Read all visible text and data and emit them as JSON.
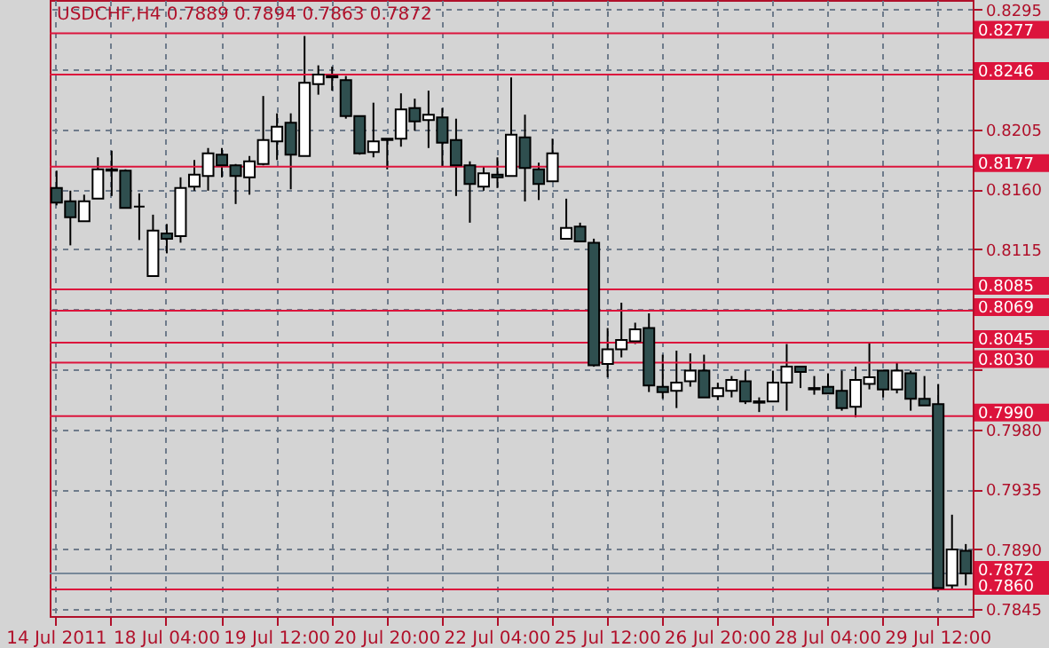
{
  "chart_data": {
    "type": "candlestick",
    "title": "USDCHF,H4 0.7889 0.7894 0.7863 0.7872",
    "categories": [
      "14 Jul 2011",
      null,
      null,
      null,
      null,
      null,
      null,
      null,
      "18 Jul 04:00",
      null,
      null,
      null,
      null,
      null,
      null,
      null,
      "19 Jul 12:00",
      null,
      null,
      null,
      null,
      null,
      null,
      null,
      "20 Jul 20:00",
      null,
      null,
      null,
      null,
      null,
      null,
      null,
      "22 Jul 04:00",
      null,
      null,
      null,
      null,
      null,
      null,
      null,
      "25 Jul 12:00",
      null,
      null,
      null,
      null,
      null,
      null,
      null,
      "26 Jul 20:00",
      null,
      null,
      null,
      null,
      null,
      null,
      null,
      "28 Jul 04:00",
      null,
      null,
      null,
      null,
      null,
      null,
      null,
      "29 Jul 12:00",
      null,
      null
    ],
    "ohlc": [
      [
        0.8161,
        0.8174,
        0.8148,
        0.815
      ],
      [
        0.8151,
        0.8159,
        0.8118,
        0.8139
      ],
      [
        0.8136,
        0.8156,
        0.8136,
        0.8151
      ],
      [
        0.8153,
        0.8184,
        0.8153,
        0.8175
      ],
      [
        0.8175,
        0.8189,
        0.8155,
        0.8174
      ],
      [
        0.8174,
        0.8175,
        0.8146,
        0.8146
      ],
      [
        0.8147,
        0.8157,
        0.8122,
        0.8147
      ],
      [
        0.8095,
        0.8141,
        0.8095,
        0.8129
      ],
      [
        0.8127,
        0.8134,
        0.8112,
        0.8123
      ],
      [
        0.8125,
        0.8169,
        0.812,
        0.8161
      ],
      [
        0.8162,
        0.8182,
        0.8159,
        0.8171
      ],
      [
        0.817,
        0.8191,
        0.8159,
        0.8187
      ],
      [
        0.8186,
        0.8191,
        0.8169,
        0.8178
      ],
      [
        0.8178,
        0.8179,
        0.8149,
        0.817
      ],
      [
        0.8169,
        0.8185,
        0.8156,
        0.8181
      ],
      [
        0.8179,
        0.823,
        0.8178,
        0.8197
      ],
      [
        0.8196,
        0.8217,
        0.8182,
        0.8207
      ],
      [
        0.821,
        0.8217,
        0.816,
        0.8186
      ],
      [
        0.8185,
        0.8275,
        0.8185,
        0.824
      ],
      [
        0.8239,
        0.8253,
        0.8231,
        0.8246
      ],
      [
        0.8245,
        0.8252,
        0.8234,
        0.8244
      ],
      [
        0.8242,
        0.8245,
        0.8213,
        0.8215
      ],
      [
        0.8215,
        0.8215,
        0.8186,
        0.8187
      ],
      [
        0.8188,
        0.8225,
        0.8184,
        0.8196
      ],
      [
        0.8198,
        0.8198,
        0.8175,
        0.8197
      ],
      [
        0.8198,
        0.8232,
        0.8192,
        0.822
      ],
      [
        0.8221,
        0.8228,
        0.8204,
        0.8211
      ],
      [
        0.8212,
        0.8234,
        0.8191,
        0.8216
      ],
      [
        0.8214,
        0.8221,
        0.8177,
        0.8195
      ],
      [
        0.8197,
        0.8213,
        0.8155,
        0.8178
      ],
      [
        0.8178,
        0.8181,
        0.8135,
        0.8164
      ],
      [
        0.8162,
        0.8177,
        0.8159,
        0.8172
      ],
      [
        0.8171,
        0.8184,
        0.8161,
        0.8169
      ],
      [
        0.817,
        0.8244,
        0.817,
        0.8201
      ],
      [
        0.8199,
        0.8216,
        0.8151,
        0.8176
      ],
      [
        0.8175,
        0.818,
        0.8152,
        0.8164
      ],
      [
        0.8166,
        0.8198,
        0.8166,
        0.8187
      ],
      [
        0.8123,
        0.8153,
        0.8123,
        0.8131
      ],
      [
        0.8132,
        0.8135,
        0.8121,
        0.8121
      ],
      [
        0.812,
        0.8123,
        0.8027,
        0.8028
      ],
      [
        0.8029,
        0.8056,
        0.8019,
        0.804
      ],
      [
        0.804,
        0.8075,
        0.8034,
        0.8047
      ],
      [
        0.8046,
        0.806,
        0.8044,
        0.8055
      ],
      [
        0.8056,
        0.8067,
        0.8008,
        0.8013
      ],
      [
        0.8012,
        0.8036,
        0.8003,
        0.8008
      ],
      [
        0.8009,
        0.8039,
        0.7996,
        0.8015
      ],
      [
        0.8016,
        0.8037,
        0.8012,
        0.8024
      ],
      [
        0.8024,
        0.8036,
        0.8004,
        0.8004
      ],
      [
        0.8005,
        0.8015,
        0.8002,
        0.8011
      ],
      [
        0.8009,
        0.802,
        0.8004,
        0.8017
      ],
      [
        0.8016,
        0.8024,
        0.7999,
        0.8001
      ],
      [
        0.8001,
        0.8004,
        0.7993,
        0.8
      ],
      [
        0.8001,
        0.8024,
        0.8001,
        0.8015
      ],
      [
        0.8015,
        0.8044,
        0.7994,
        0.8027
      ],
      [
        0.8027,
        0.8027,
        0.8011,
        0.8023
      ],
      [
        0.8011,
        0.802,
        0.8006,
        0.801
      ],
      [
        0.8012,
        0.8022,
        0.8007,
        0.8007
      ],
      [
        0.8009,
        0.8024,
        0.7994,
        0.7996
      ],
      [
        0.7997,
        0.8027,
        0.7989,
        0.8017
      ],
      [
        0.8014,
        0.8045,
        0.801,
        0.8019
      ],
      [
        0.8024,
        0.8024,
        0.8004,
        0.801
      ],
      [
        0.801,
        0.803,
        0.8007,
        0.8024
      ],
      [
        0.8022,
        0.8024,
        0.7994,
        0.8003
      ],
      [
        0.8003,
        0.802,
        0.7998,
        0.7998
      ],
      [
        0.7999,
        0.8014,
        0.7859,
        0.7861
      ],
      [
        0.7863,
        0.7916,
        0.786,
        0.789
      ],
      [
        0.7889,
        0.7894,
        0.7863,
        0.7872
      ]
    ],
    "colors": [
      "#2f4f4f",
      "#2f4f4f",
      "#ffffff",
      "#ffffff",
      "#2f4f4f",
      "#2f4f4f",
      "#000000",
      "#ffffff",
      "#2f4f4f",
      "#ffffff",
      "#ffffff",
      "#ffffff",
      "#2f4f4f",
      "#2f4f4f",
      "#ffffff",
      "#ffffff",
      "#ffffff",
      "#2f4f4f",
      "#ffffff",
      "#ffffff",
      "#2f4f4f",
      "#2f4f4f",
      "#2f4f4f",
      "#ffffff",
      "#2f4f4f",
      "#ffffff",
      "#2f4f4f",
      "#ffffff",
      "#2f4f4f",
      "#2f4f4f",
      "#2f4f4f",
      "#ffffff",
      "#2f4f4f",
      "#ffffff",
      "#2f4f4f",
      "#2f4f4f",
      "#ffffff",
      "#ffffff",
      "#2f4f4f",
      "#2f4f4f",
      "#ffffff",
      "#ffffff",
      "#ffffff",
      "#2f4f4f",
      "#2f4f4f",
      "#ffffff",
      "#ffffff",
      "#2f4f4f",
      "#ffffff",
      "#ffffff",
      "#2f4f4f",
      "#2f4f4f",
      "#ffffff",
      "#ffffff",
      "#2f4f4f",
      "#2f4f4f",
      "#2f4f4f",
      "#2f4f4f",
      "#ffffff",
      "#ffffff",
      "#2f4f4f",
      "#ffffff",
      "#2f4f4f",
      "#2f4f4f",
      "#2f4f4f",
      "#ffffff",
      "#2f4f4f"
    ],
    "ylim": [
      0.784,
      0.8302
    ],
    "yticks": [
      {
        "value": 0.8295,
        "label": "0.8295"
      },
      {
        "value": 0.825,
        "label": null
      },
      {
        "value": 0.8205,
        "label": "0.8205"
      },
      {
        "value": 0.816,
        "label": "0.8160"
      },
      {
        "value": 0.8115,
        "label": "0.8115"
      },
      {
        "value": 0.807,
        "label": null
      },
      {
        "value": 0.8025,
        "label": null
      },
      {
        "value": 0.798,
        "label": "0.7980"
      },
      {
        "value": 0.7935,
        "label": "0.7935"
      },
      {
        "value": 0.789,
        "label": "0.7890"
      },
      {
        "value": 0.7845,
        "label": "0.7845"
      }
    ],
    "ref_lines": [
      {
        "axis": "y",
        "value": 0.8277,
        "label": "0.8277",
        "color": "#dc143c"
      },
      {
        "axis": "y",
        "value": 0.8246,
        "label": "0.8246",
        "color": "#dc143c"
      },
      {
        "axis": "y",
        "value": 0.8177,
        "label": "0.8177",
        "color": "#dc143c"
      },
      {
        "axis": "y",
        "value": 0.8085,
        "label": "0.8085",
        "color": "#dc143c"
      },
      {
        "axis": "y",
        "value": 0.8069,
        "label": "0.8069",
        "color": "#dc143c"
      },
      {
        "axis": "y",
        "value": 0.8045,
        "label": "0.8045",
        "color": "#dc143c"
      },
      {
        "axis": "y",
        "value": 0.803,
        "label": "0.8030",
        "color": "#dc143c"
      },
      {
        "axis": "y",
        "value": 0.799,
        "label": "0.7990",
        "color": "#dc143c"
      },
      {
        "axis": "y",
        "value": 0.7872,
        "label": "0.7872",
        "color": "#778899"
      },
      {
        "axis": "y",
        "value": 0.786,
        "label": "0.7860",
        "color": "#dc143c"
      }
    ],
    "grid": true
  }
}
